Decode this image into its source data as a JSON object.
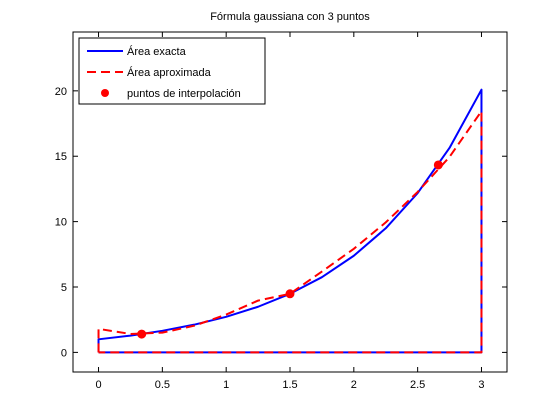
{
  "chart_data": {
    "type": "line",
    "title": "Fórmula gaussiana con 3 puntos",
    "xlabel": "",
    "ylabel": "",
    "xlim": [
      -0.2,
      3.2
    ],
    "ylim": [
      -1.5,
      24.5
    ],
    "xticks": [
      0,
      0.5,
      1,
      1.5,
      2,
      2.5,
      3
    ],
    "xtick_labels": [
      "0",
      "0.5",
      "1",
      "1.5",
      "2",
      "2.5",
      "3"
    ],
    "yticks": [
      0,
      5,
      10,
      15,
      20
    ],
    "ytick_labels": [
      "0",
      "5",
      "10",
      "15",
      "20"
    ],
    "grid": false,
    "legend_position": "top-left",
    "series": [
      {
        "name": "Área exacta",
        "style": "solid",
        "color": "#0000ff",
        "x": [
          0,
          0,
          0.25,
          0.5,
          0.75,
          1,
          1.25,
          1.5,
          1.75,
          2,
          2.25,
          2.5,
          2.75,
          3,
          3,
          0
        ],
        "y": [
          0,
          1,
          1.28,
          1.65,
          2.12,
          2.72,
          3.49,
          4.48,
          5.75,
          7.39,
          9.49,
          12.18,
          15.64,
          20.09,
          0,
          0
        ]
      },
      {
        "name": "Área aproximada",
        "style": "dashed",
        "color": "#ff0000",
        "x": [
          0,
          0,
          0.25,
          0.5,
          0.75,
          1,
          1.25,
          1.5,
          1.75,
          2,
          2.25,
          2.5,
          2.75,
          3,
          3,
          0
        ],
        "y": [
          0,
          1.8,
          1.41,
          1.51,
          2.04,
          2.89,
          3.96,
          4.48,
          6.18,
          7.92,
          9.94,
          12.27,
          14.95,
          18.45,
          0,
          0
        ]
      },
      {
        "name": "puntos de interpolación",
        "style": "markers",
        "color": "#ff0000",
        "x": [
          0.338,
          1.5,
          2.662
        ],
        "y": [
          1.4,
          4.48,
          14.33
        ]
      }
    ]
  }
}
